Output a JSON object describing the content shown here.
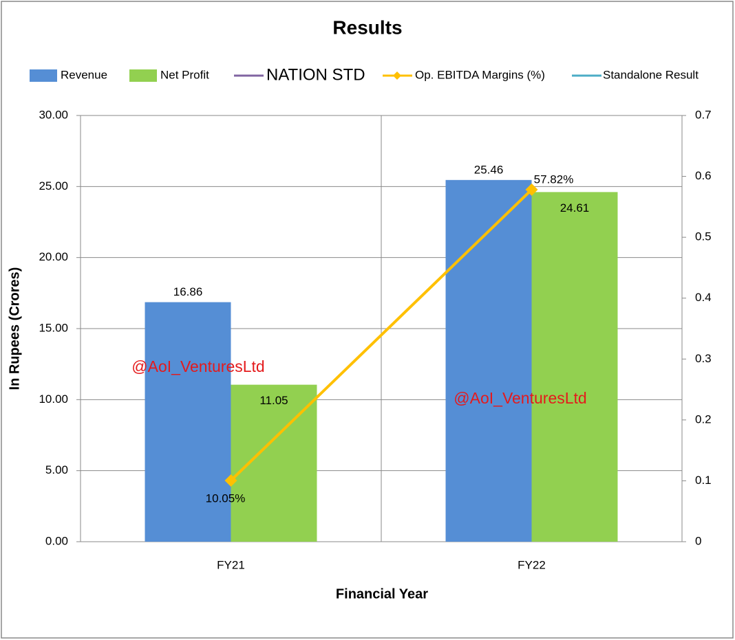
{
  "chart_data": {
    "type": "bar",
    "title": "Results",
    "categories": [
      "FY21",
      "FY22"
    ],
    "x_label": "Financial Year",
    "y_label": "In Rupees (Crores)",
    "ylim": [
      0,
      30
    ],
    "yticks": [
      {
        "value": 0,
        "label": "0.00"
      },
      {
        "value": 5,
        "label": "5.00"
      },
      {
        "value": 10,
        "label": "10.00"
      },
      {
        "value": 15,
        "label": "15.00"
      },
      {
        "value": 20,
        "label": "20.00"
      },
      {
        "value": 25,
        "label": "25.00"
      },
      {
        "value": 30,
        "label": "30.00"
      }
    ],
    "y2lim": [
      0,
      0.7
    ],
    "y2ticks": [
      0,
      0.1,
      0.2,
      0.3,
      0.4,
      0.5,
      0.6,
      0.7
    ],
    "grid": true,
    "legend": "top",
    "series": [
      {
        "name": "Revenue",
        "type": "bar",
        "color": "#558ed5",
        "values": [
          16.86,
          25.46
        ]
      },
      {
        "name": "Net Profit",
        "type": "bar",
        "color": "#92d050",
        "values": [
          11.05,
          24.61
        ]
      },
      {
        "name": "NATION STD",
        "type": "line",
        "color": "#8064a2",
        "values": [
          null,
          null
        ]
      },
      {
        "name": "Op. EBITDA Margins (%)",
        "type": "line",
        "axis": "y2",
        "color": "#ffc000",
        "values": [
          0.1005,
          0.5782
        ],
        "value_labels": [
          "10.05%",
          "57.82%"
        ]
      },
      {
        "name": "Standalone Result",
        "type": "line",
        "color": "#4bacc6",
        "values": [
          null,
          null
        ]
      }
    ],
    "annotations": [
      "@AoI_VenturesLtd",
      "@AoI_VenturesLtd"
    ]
  }
}
